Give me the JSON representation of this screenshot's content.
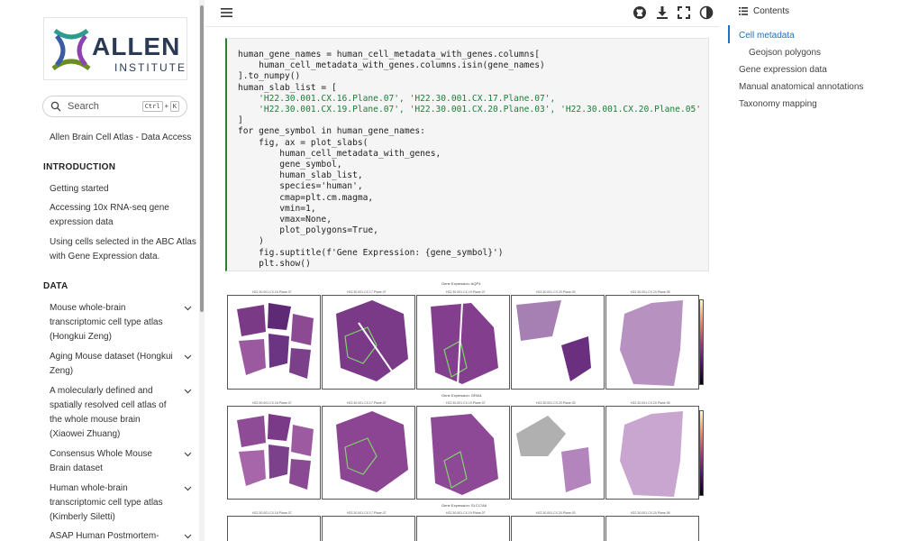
{
  "logo": {
    "word": "ALLEN",
    "sub": "INSTITUTE"
  },
  "search": {
    "label": "Search",
    "key1": "Ctrl",
    "plus": "+",
    "key2": "K"
  },
  "sidebar": {
    "top_link": "Allen Brain Cell Atlas - Data Access",
    "intro_heading": "INTRODUCTION",
    "intro_items": [
      "Getting started",
      "Accessing 10x RNA-seq gene expression data",
      "Using cells selected in the ABC Atlas with Gene Expression data."
    ],
    "data_heading": "DATA",
    "data_items": [
      "Mouse whole-brain transcriptomic cell type atlas (Hongkui Zeng)",
      "Aging Mouse dataset (Hongkui Zeng)",
      "A molecularly defined and spatially resolved cell atlas of the whole mouse brain (Xiaowei Zhuang)",
      "Consensus Whole Mouse Brain dataset",
      "Human whole-brain transcriptomic cell type atlas (Kimberly Siletti)",
      "ASAP Human Postmortem-"
    ]
  },
  "toolbar": {
    "icons": [
      "hamburger-icon",
      "github-icon",
      "download-icon",
      "fullscreen-icon",
      "theme-icon"
    ]
  },
  "code": {
    "lines": [
      "human_gene_names = human_cell_metadata_with_genes.columns[",
      "    human_cell_metadata_with_genes.columns.isin(gene_names)",
      "].to_numpy()",
      "human_slab_list = [",
      "    'H22.30.001.CX.16.Plane.07', 'H22.30.001.CX.17.Plane.07',",
      "    'H22.30.001.CX.19.Plane.07', 'H22.30.001.CX.20.Plane.03', 'H22.30.001.CX.20.Plane.05'",
      "]",
      "for gene_symbol in human_gene_names:",
      "    fig, ax = plot_slabs(",
      "        human_cell_metadata_with_genes,",
      "        gene_symbol,",
      "        human_slab_list,",
      "        species='human',",
      "        cmap=plt.cm.magma,",
      "        vmin=1,",
      "        vmax=None,",
      "        plot_polygons=True,",
      "    )",
      "    fig.suptitle(f'Gene Expression: {gene_symbol}')",
      "    plt.show()"
    ]
  },
  "figure": {
    "rows": [
      {
        "title": "Gene Expression: AQP4"
      },
      {
        "title": "Gene Expression: GRIA1"
      },
      {
        "title": "Gene Expression: SLC17A6"
      }
    ],
    "panel_titles": [
      "H22.30.001.CX.16.Plane.07",
      "H22.30.001.CX.17.Plane.07",
      "H22.30.001.CX.19.Plane.07",
      "H22.30.001.CX.20.Plane.03",
      "H22.30.001.CX.20.Plane.05"
    ]
  },
  "contents": {
    "heading": "Contents",
    "items": [
      {
        "label": "Cell metadata",
        "active": true
      },
      {
        "label": "Geojson polygons",
        "sub": true
      },
      {
        "label": "Gene expression data"
      },
      {
        "label": "Manual anatomical annotations"
      },
      {
        "label": "Taxonomy mapping"
      }
    ]
  },
  "colors": {
    "accent": "#1a73c8",
    "code_border": "#2e7d32",
    "string": "#1a7f37",
    "keyword": "#8a2be2"
  }
}
